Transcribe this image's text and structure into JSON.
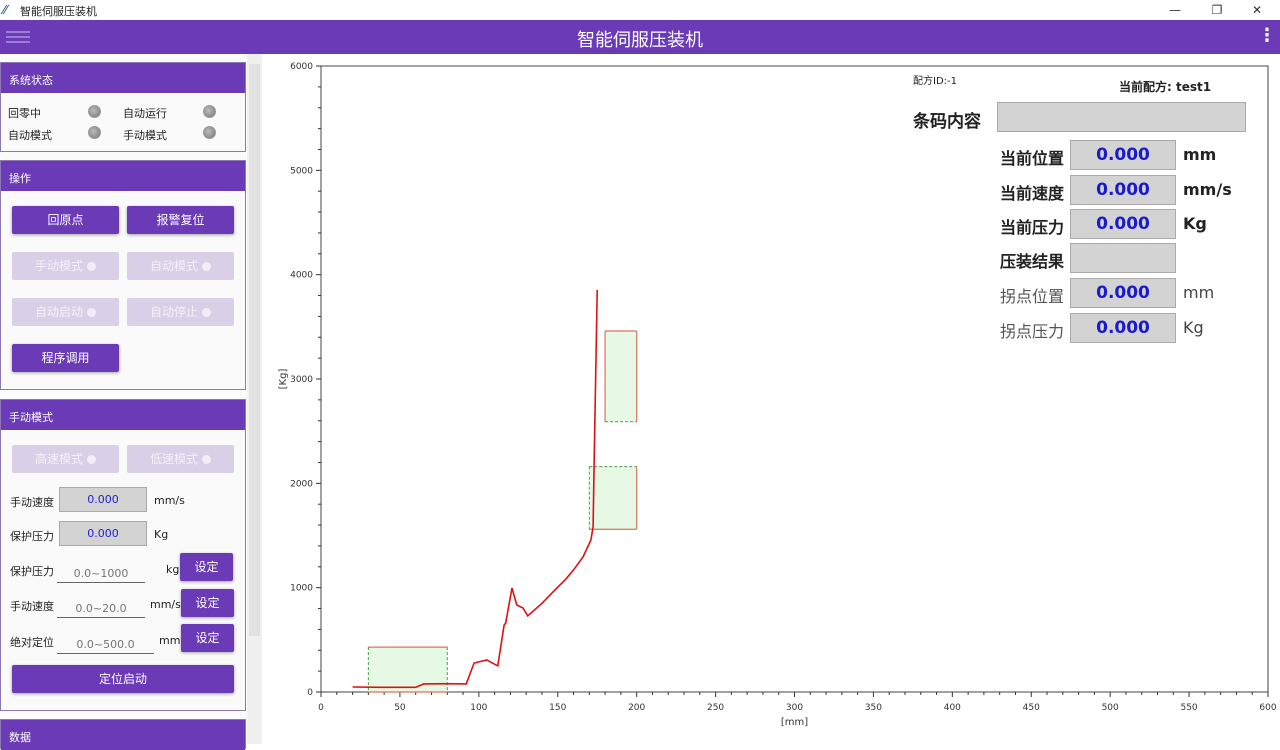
{
  "window": {
    "title": "智能伺服压装机",
    "minimize": "—",
    "restore": "❐",
    "close": "✕"
  },
  "appbar": {
    "title": "智能伺服压装机",
    "menu_icon": "hamburger-icon",
    "more": "⋮"
  },
  "status_panel": {
    "title": "系统状态",
    "items": [
      {
        "label": "回零中"
      },
      {
        "label": "自动运行"
      },
      {
        "label": "自动模式"
      },
      {
        "label": "手动模式"
      }
    ]
  },
  "operation_panel": {
    "title": "操作",
    "home": "回原点",
    "alarm_reset": "报警复位",
    "manual_mode": "手动模式",
    "auto_mode": "自动模式",
    "auto_start": "自动启动",
    "auto_stop": "自动停止",
    "program_call": "程序调用"
  },
  "manual_panel": {
    "title": "手动模式",
    "high_speed": "高速模式",
    "low_speed": "低速模式",
    "manual_speed_label": "手动速度",
    "manual_speed_value": "0.000",
    "manual_speed_unit": "mm/s",
    "protect_pressure_label": "保护压力",
    "protect_pressure_value": "0.000",
    "protect_pressure_unit": "Kg",
    "set_rows": [
      {
        "label": "保护压力",
        "placeholder": "0.0~1000",
        "unit": "kg",
        "button": "设定"
      },
      {
        "label": "手动速度",
        "placeholder": "0.0~20.0",
        "unit": "mm/s",
        "button": "设定"
      },
      {
        "label": "绝对定位",
        "placeholder": "0.0~500.0",
        "unit": "mm",
        "button": "设定"
      }
    ],
    "position_start": "定位启动"
  },
  "data_panel": {
    "title": "数据"
  },
  "info": {
    "recipe_id": "配方ID:-1",
    "current_recipe": "当前配方:  test1",
    "barcode_label": "条码内容",
    "barcode_value": "",
    "rows": [
      {
        "label": "当前位置",
        "value": "0.000",
        "unit": "mm",
        "bold": true
      },
      {
        "label": "当前速度",
        "value": "0.000",
        "unit": "mm/s",
        "bold": true
      },
      {
        "label": "当前压力",
        "value": "0.000",
        "unit": "Kg",
        "bold": true
      },
      {
        "label": "压装结果",
        "value": "",
        "unit": "",
        "bold": true
      },
      {
        "label": "拐点位置",
        "value": "0.000",
        "unit": "mm",
        "bold": false
      },
      {
        "label": "拐点压力",
        "value": "0.000",
        "unit": "Kg",
        "bold": false
      }
    ]
  },
  "chart_data": {
    "type": "line",
    "xlabel": "[mm]",
    "ylabel": "[Kg]",
    "xlim": [
      0,
      600
    ],
    "ylim": [
      0,
      6000
    ],
    "xticks": [
      0,
      50,
      100,
      150,
      200,
      250,
      300,
      350,
      400,
      450,
      500,
      550,
      600
    ],
    "yticks": [
      0,
      1000,
      2000,
      3000,
      4000,
      5000,
      6000
    ],
    "color": "#e01010",
    "series": [
      {
        "x": [
          20,
          40,
          60,
          65,
          80,
          92,
          97,
          105,
          112,
          116,
          117,
          121,
          124,
          128,
          131,
          140,
          147,
          155,
          160,
          166,
          171,
          172.4,
          173,
          174,
          175
        ],
        "y": [
          48,
          45,
          45,
          77,
          80,
          77,
          278,
          307,
          250,
          640,
          661,
          997,
          834,
          805,
          729,
          850,
          959,
          1080,
          1170,
          1294,
          1457,
          1582,
          2157,
          3000,
          3854
        ]
      }
    ],
    "windows": [
      {
        "x": [
          30,
          80
        ],
        "y": [
          0,
          430
        ]
      },
      {
        "x": [
          170,
          200
        ],
        "y": [
          1560,
          2160
        ]
      },
      {
        "x": [
          180,
          200
        ],
        "y": [
          2590,
          3460
        ]
      }
    ],
    "window_fill": "#e6f9e4",
    "window_solid": "#e07060",
    "window_dashed": "#4a9a4a"
  }
}
